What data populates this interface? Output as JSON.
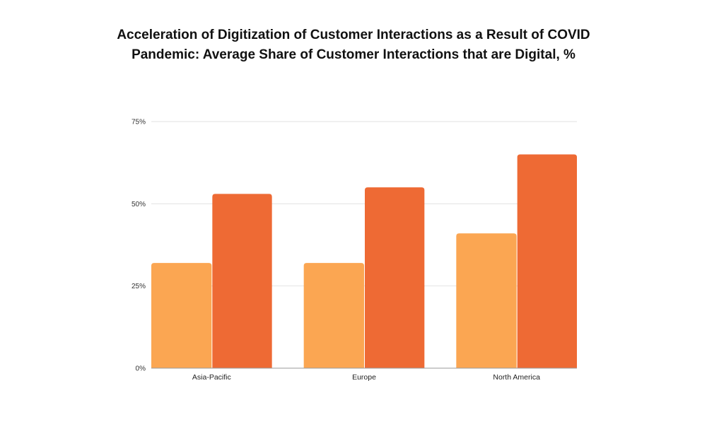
{
  "chart_data": {
    "type": "bar",
    "title_lines": [
      "Acceleration of Digitization of Customer Interactions as a Result of COVID",
      "Pandemic: Average Share of Customer Interactions that are Digital, %"
    ],
    "title": "Acceleration of Digitization of Customer Interactions as a Result of COVID Pandemic: Average Share of Customer Interactions that are Digital, %",
    "xlabel": "",
    "ylabel": "",
    "categories": [
      "Asia-Pacific",
      "Europe",
      "North America"
    ],
    "series": [
      {
        "name": "Series 1",
        "color": "#FBA652",
        "values": [
          32,
          32,
          41
        ]
      },
      {
        "name": "Series 2",
        "color": "#EE6A34",
        "values": [
          53,
          55,
          65
        ]
      }
    ],
    "ylim": [
      0,
      75
    ],
    "yticks": [
      0,
      25,
      50,
      75
    ],
    "ytick_labels": [
      "0%",
      "25%",
      "50%",
      "75%"
    ],
    "grid": true,
    "legend": "none"
  }
}
